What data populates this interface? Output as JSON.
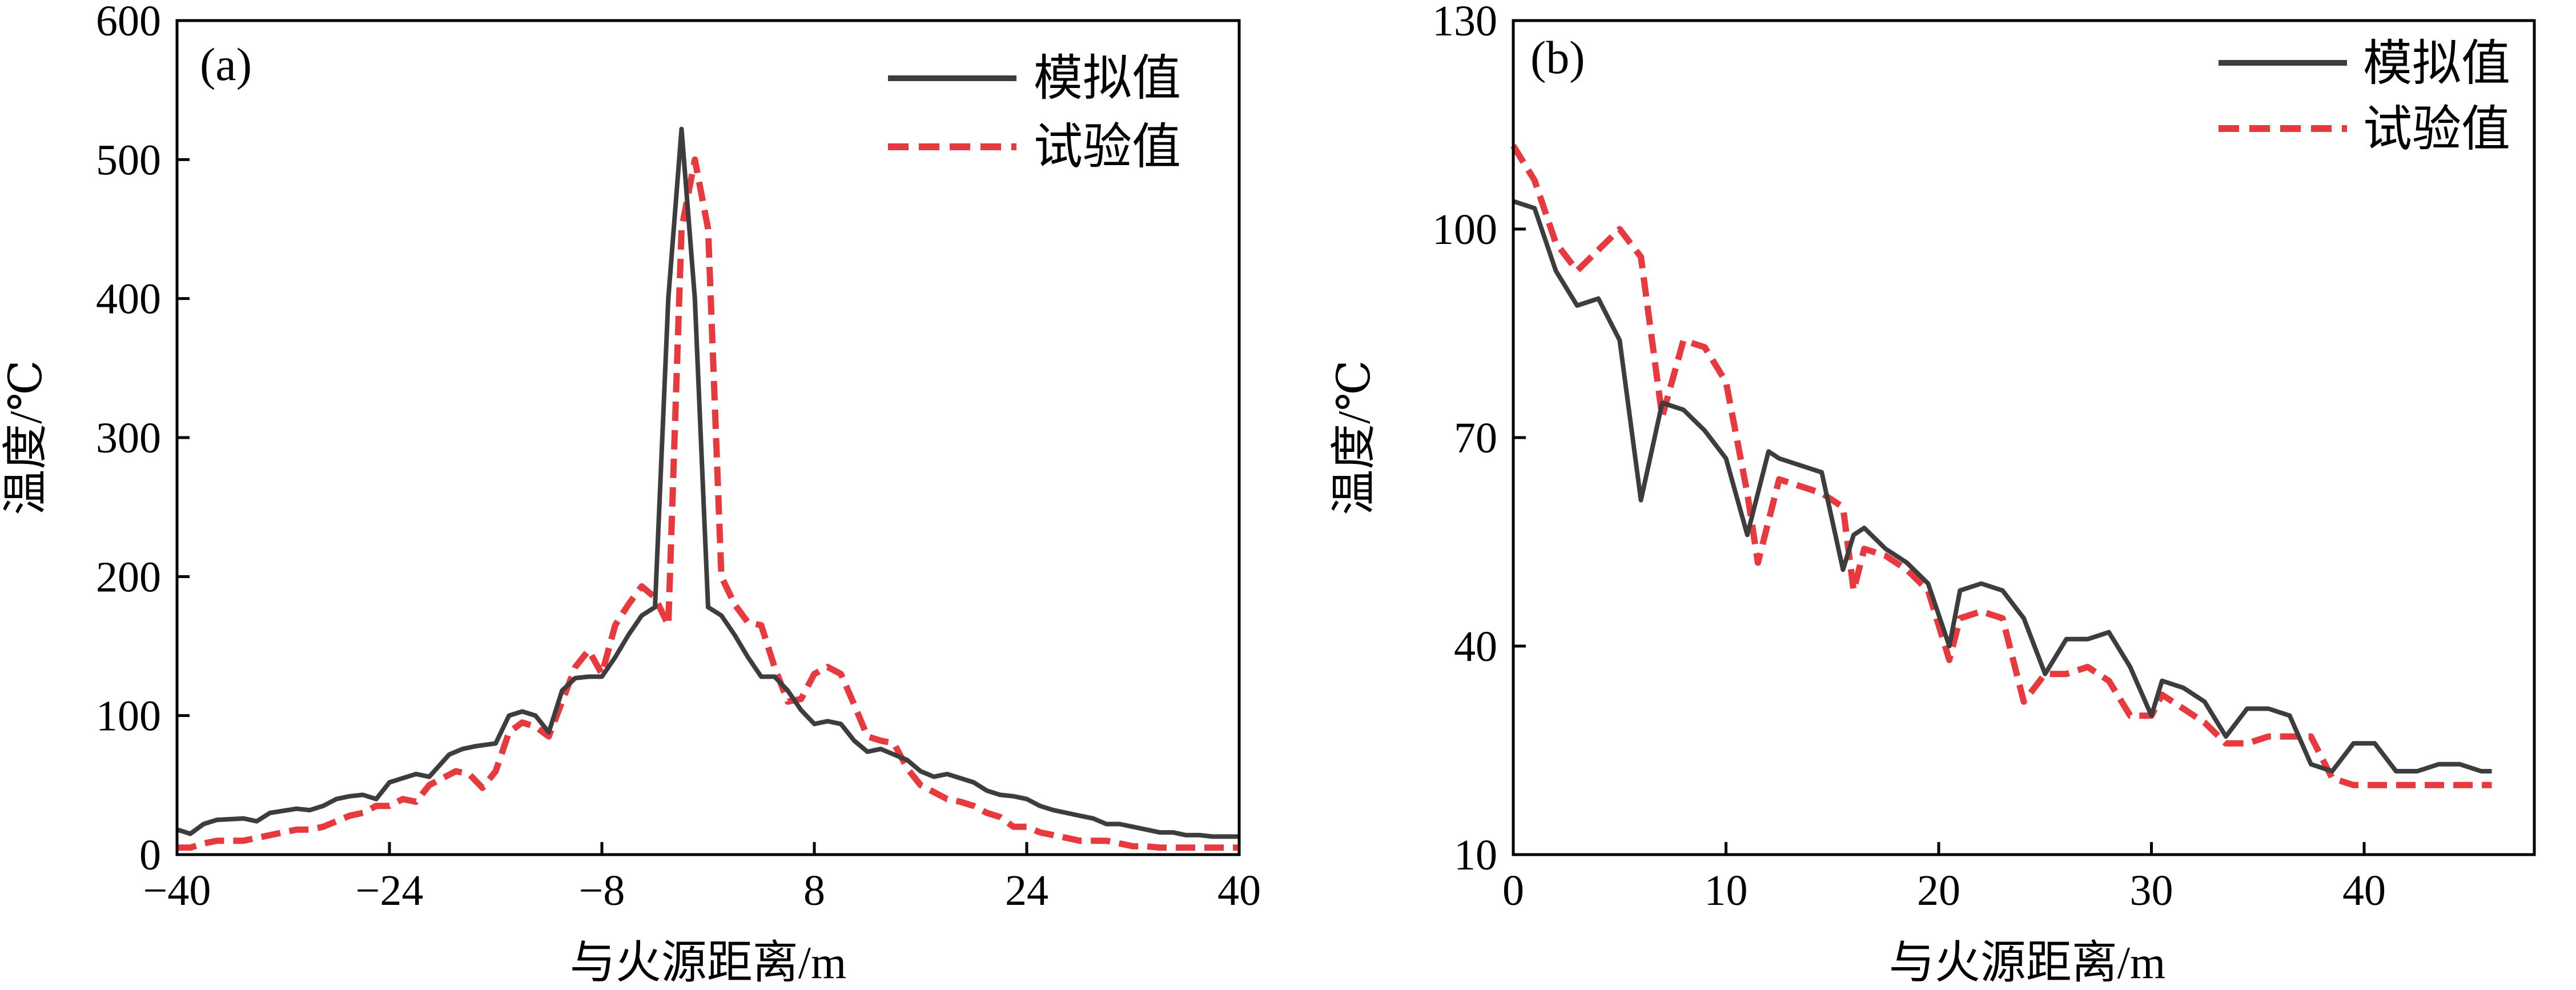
{
  "colors": {
    "sim": "#3d3d3d",
    "exp": "#e8393f",
    "frame": "#000000"
  },
  "chart_data": [
    {
      "type": "line",
      "panel_label": "(a)",
      "xlabel": "与火源距离/m",
      "ylabel": "温度/℃",
      "xlim": [
        -40,
        40
      ],
      "ylim": [
        0,
        600
      ],
      "xticks": [
        -40,
        -24,
        -8,
        8,
        24,
        40
      ],
      "yticks": [
        0,
        100,
        200,
        300,
        400,
        500,
        600
      ],
      "grid": false,
      "legend_position": "top-right",
      "series": [
        {
          "name": "模拟值",
          "style": "solid",
          "x": [
            -40,
            -39,
            -38,
            -37,
            -35,
            -34,
            -33,
            -31,
            -30,
            -29,
            -28,
            -27,
            -26,
            -25,
            -24,
            -23,
            -22,
            -21,
            -19.5,
            -18.5,
            -17.5,
            -16,
            -15,
            -14,
            -13,
            -12,
            -11,
            -10,
            -9,
            -8,
            -7,
            -6,
            -5,
            -4,
            -3,
            -2,
            -1,
            0,
            1,
            2,
            3,
            4,
            5,
            6,
            7,
            8,
            9,
            10,
            11,
            12,
            13,
            14,
            15,
            16,
            17,
            18,
            19,
            20,
            21,
            22,
            23,
            24,
            25,
            26,
            27,
            28,
            29,
            30,
            31,
            32,
            33,
            34,
            35,
            36,
            37,
            38,
            39,
            40
          ],
          "y": [
            18,
            15,
            22,
            25,
            26,
            24,
            30,
            33,
            32,
            35,
            40,
            42,
            43,
            40,
            52,
            55,
            58,
            56,
            72,
            76,
            78,
            80,
            100,
            103,
            100,
            88,
            118,
            127,
            128,
            128,
            142,
            158,
            172,
            178,
            400,
            522,
            400,
            178,
            172,
            158,
            142,
            128,
            128,
            118,
            104,
            94,
            96,
            94,
            82,
            74,
            76,
            72,
            68,
            60,
            56,
            58,
            55,
            52,
            46,
            43,
            42,
            40,
            35,
            32,
            30,
            28,
            26,
            22,
            22,
            20,
            18,
            16,
            16,
            14,
            14,
            13,
            13,
            13
          ]
        },
        {
          "name": "试验值",
          "style": "dashed",
          "x": [
            -40,
            -39,
            -38,
            -37,
            -36,
            -35,
            -34,
            -33,
            -32,
            -31,
            -30,
            -29,
            -28,
            -27,
            -26,
            -25,
            -24,
            -23,
            -22,
            -21,
            -20,
            -19,
            -18,
            -17,
            -16,
            -15,
            -14,
            -13,
            -12,
            -11,
            -10,
            -9,
            -8,
            -7,
            -6,
            -5,
            -4,
            -3,
            -2,
            -1,
            0,
            1,
            2,
            3,
            4,
            5,
            6,
            7,
            8,
            9,
            10,
            11,
            12,
            13,
            14,
            15,
            16,
            17,
            18,
            19,
            20,
            21,
            22,
            23,
            24,
            25,
            26,
            27,
            28,
            29,
            30,
            31,
            32,
            33,
            34,
            35,
            36,
            37,
            38,
            39,
            40
          ],
          "y": [
            5,
            5,
            8,
            10,
            10,
            10,
            12,
            14,
            16,
            18,
            18,
            20,
            24,
            28,
            30,
            35,
            35,
            40,
            38,
            50,
            55,
            60,
            58,
            48,
            60,
            88,
            95,
            92,
            85,
            110,
            135,
            147,
            130,
            165,
            180,
            193,
            185,
            165,
            450,
            500,
            450,
            200,
            180,
            167,
            165,
            135,
            110,
            112,
            130,
            135,
            130,
            108,
            85,
            82,
            80,
            62,
            50,
            45,
            40,
            38,
            35,
            30,
            27,
            20,
            20,
            16,
            14,
            12,
            10,
            10,
            10,
            8,
            6,
            6,
            5,
            5,
            5,
            5,
            5,
            5,
            5
          ]
        }
      ]
    },
    {
      "type": "line",
      "panel_label": "(b)",
      "xlabel": "与火源距离/m",
      "ylabel": "温度/℃",
      "xlim": [
        0,
        48
      ],
      "ylim": [
        10,
        130
      ],
      "xticks": [
        0,
        10,
        20,
        30,
        40
      ],
      "yticks": [
        10,
        40,
        70,
        100,
        130
      ],
      "grid": false,
      "legend_position": "top-right",
      "series": [
        {
          "name": "模拟值",
          "style": "solid",
          "x": [
            0,
            1,
            2,
            3,
            4,
            5,
            6,
            7,
            8,
            9,
            10,
            11,
            12,
            12.5,
            13.5,
            14.5,
            15.5,
            16,
            16.5,
            17.5,
            18.5,
            19.5,
            20.5,
            21,
            22,
            23,
            24,
            25,
            26,
            27,
            28,
            29,
            30,
            30.5,
            31.5,
            32.5,
            33.5,
            34.5,
            35.5,
            36.5,
            37.5,
            38.5,
            39.5,
            40.5,
            41.5,
            42.5,
            43.5,
            44.5,
            45.5,
            46
          ],
          "y": [
            104,
            103,
            95,
            88,
            89,
            83,
            62,
            75,
            74,
            71,
            67,
            55,
            65,
            63,
            62,
            61,
            50,
            52,
            56,
            55,
            53,
            50,
            41,
            43,
            45,
            44,
            38,
            36,
            37,
            37,
            35,
            30,
            33,
            33,
            32,
            30,
            28,
            28,
            27,
            25,
            24,
            22,
            21,
            21,
            20,
            19,
            19,
            18,
            18,
            17
          ],
          "x_override": [
            0,
            1,
            2,
            3,
            4,
            5,
            6,
            7,
            8,
            9,
            10,
            11,
            12,
            12.5,
            13.5,
            14.5,
            15.5,
            16,
            16.5,
            17.5,
            18.5,
            19.5,
            20.5,
            21,
            22,
            23,
            24,
            25,
            26,
            27,
            28,
            29,
            30,
            30.5,
            31.5,
            32.5,
            33.5,
            34.5,
            35.5,
            36.5,
            37.5,
            38.5,
            39.5,
            40.5,
            41.5,
            42.5,
            43.5,
            44.5,
            45.5,
            46
          ],
          "y_override": [
            104,
            103,
            94,
            89,
            90,
            84,
            61,
            75,
            74,
            71,
            67,
            56,
            68,
            67,
            66,
            65,
            51,
            56,
            57,
            54,
            52,
            49,
            40,
            48,
            49,
            48,
            44,
            36,
            41,
            41,
            42,
            37,
            30,
            35,
            34,
            32,
            27,
            31,
            31,
            30,
            23,
            22,
            26,
            26,
            22,
            22,
            23,
            23,
            22,
            22
          ]
        },
        {
          "name": "试验值",
          "style": "dashed",
          "x": [
            0,
            1,
            2,
            3,
            4,
            5,
            6,
            7,
            8,
            9,
            10,
            11,
            11.5,
            12.5,
            13.5,
            14.5,
            15.5,
            16,
            16.5,
            17.5,
            18.5,
            19.5,
            20.5,
            21,
            22,
            23,
            24,
            25,
            26,
            27,
            28,
            29,
            30,
            30.5,
            31.5,
            32.5,
            33.5,
            34.5,
            35.5,
            36.5,
            37.5,
            38.5,
            39.5,
            40.5,
            41.5,
            42.5,
            43.5,
            44.5,
            45.5,
            46
          ],
          "y": [
            112,
            107,
            98,
            94,
            97,
            100,
            96,
            73,
            84,
            83,
            78,
            62,
            52,
            64,
            63,
            62,
            60,
            48,
            54,
            53,
            51,
            48,
            38,
            44,
            45,
            44,
            32,
            36,
            36,
            37,
            35,
            30,
            30,
            33,
            31,
            29,
            26,
            26,
            27,
            27,
            27,
            21,
            20,
            20,
            20,
            20,
            20,
            20,
            20,
            20
          ]
        }
      ]
    }
  ]
}
